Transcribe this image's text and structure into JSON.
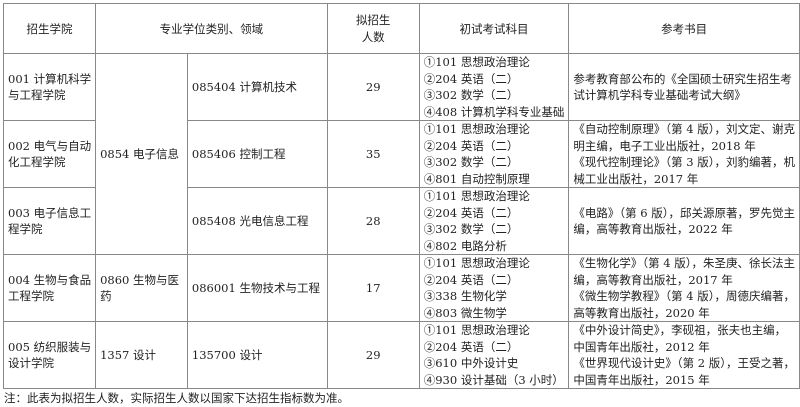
{
  "headers": [
    "招生学院",
    "专业学位类别、领域",
    "拟招生人数",
    "初试考试科目",
    "参考书目"
  ],
  "headers_lines": {
    "count": [
      "拟招生",
      "人数"
    ]
  },
  "rows": [
    {
      "college": [
        "001 计算机科学",
        "与工程学院"
      ],
      "field": "085404 计算机技术",
      "count": "29",
      "exams": [
        "①101 思想政治理论",
        "②204 英语（二）",
        "③302 数学（二）",
        "④408 计算机学科专业基础"
      ],
      "books": [
        "参考教育部公布的《全国硕士研究生招生考",
        "试计算机学科专业基础考试大纲》"
      ]
    },
    {
      "college": [
        "002 电气与自动",
        "化工程学院"
      ],
      "field": "085406 控制工程",
      "count": "35",
      "exams": [
        "①101 思想政治理论",
        "②204 英语（二）",
        "③302 数学（二）",
        "④801 自动控制原理"
      ],
      "books": [
        "《自动控制原理》（第 4 版），刘文定、谢克",
        "明主编，电子工业出版社，2018 年",
        "《现代控制理论》（第 3 版），刘豹编著，机",
        "械工业出版社，2017 年"
      ]
    },
    {
      "college": [
        "003 电子信息工",
        "程学院"
      ],
      "field": "085408 光电信息工程",
      "count": "28",
      "exams": [
        "①101 思想政治理论",
        "②204 英语（二）",
        "③302 数学（二）",
        "④802 电路分析"
      ],
      "books": [
        "《电路》（第 6 版），邱关源原著，罗先觉主",
        "编，高等教育出版社，2022 年"
      ]
    },
    {
      "college": [
        "004 生物与食品",
        "工程学院"
      ],
      "category": "0860 生物与医药",
      "field": "086001 生物技术与工程",
      "count": "17",
      "exams": [
        "①101 思想政治理论",
        "②204 英语（二）",
        "③338 生物化学",
        "④803 微生物学"
      ],
      "books": [
        "《生物化学》（第 4 版），朱圣庚、徐长法主",
        "编，高等教育出版社，2017 年",
        "《微生物学教程》（第 4 版），周德庆编著，",
        "高等教育出版社，2020 年"
      ]
    },
    {
      "college": [
        "005 纺织服装与",
        "设计学院"
      ],
      "category": "1357 设计",
      "field": "135700 设计",
      "count": "29",
      "exams": [
        "①101 思想政治理论",
        "②204 英语（二）",
        "③610 中外设计史",
        "④930 设计基础（3 小时）"
      ],
      "books": [
        "《中外设计简史》，李砚祖，张夫也主编，",
        "中国青年出版社，2012 年",
        "《世界现代设计史》（第 2 版），王受之著，",
        "中国青年出版社，2015 年"
      ]
    }
  ],
  "category_merged": "0854 电子信息",
  "note": "注：此表为拟招生人数，实际招生人数以国家下达招生指标数为准。"
}
